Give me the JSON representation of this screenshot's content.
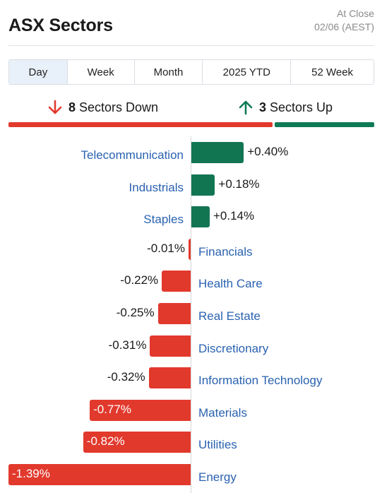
{
  "header": {
    "title": "ASX Sectors",
    "asof_line1": "At Close",
    "asof_line2": "02/06 (AEST)"
  },
  "tabs": [
    {
      "label": "Day",
      "active": true
    },
    {
      "label": "Week",
      "active": false
    },
    {
      "label": "Month",
      "active": false
    },
    {
      "label": "2025 YTD",
      "active": false
    },
    {
      "label": "52 Week",
      "active": false
    }
  ],
  "summary": {
    "down_count": "8",
    "down_label": "Sectors Down",
    "up_count": "3",
    "up_label": "Sectors Up",
    "down_icon": "arrow-down-icon",
    "up_icon": "arrow-up-icon"
  },
  "colors": {
    "positive": "#127552",
    "negative": "#e2392d",
    "link": "#2a62b0",
    "tab_active_bg": "#e8f0fa"
  },
  "chart_data": {
    "type": "bar",
    "orientation": "horizontal-diverging",
    "unit": "%",
    "categories": [
      "Telecommunication",
      "Industrials",
      "Staples",
      "Financials",
      "Health Care",
      "Real Estate",
      "Discretionary",
      "Information Technology",
      "Materials",
      "Utilities",
      "Energy"
    ],
    "values": [
      0.4,
      0.18,
      0.14,
      -0.01,
      -0.22,
      -0.25,
      -0.31,
      -0.32,
      -0.77,
      -0.82,
      -1.39
    ],
    "labels": [
      "+0.40%",
      "+0.18%",
      "+0.14%",
      "-0.01%",
      "-0.22%",
      "-0.25%",
      "-0.31%",
      "-0.32%",
      "-0.77%",
      "-0.82%",
      "-1.39%"
    ],
    "xlim": [
      -1.39,
      1.39
    ],
    "grid": false
  }
}
